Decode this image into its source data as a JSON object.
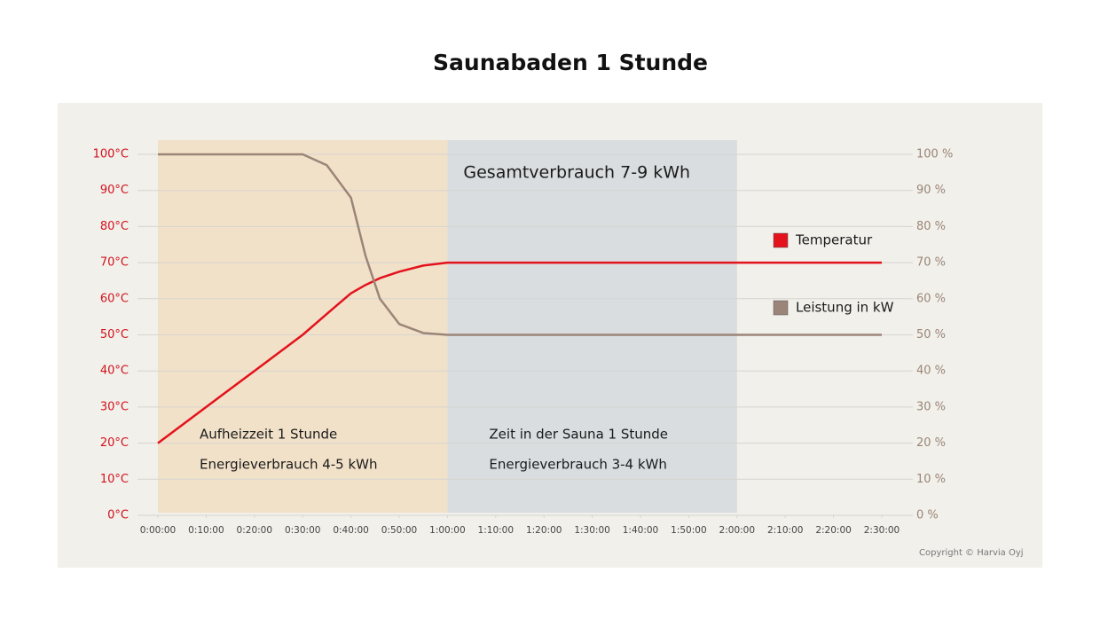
{
  "chart_data": {
    "type": "line",
    "title": "Saunabaden 1 Stunde",
    "x": [
      0,
      10,
      20,
      30,
      35,
      40,
      43,
      46,
      50,
      55,
      60,
      150
    ],
    "xlim": [
      0,
      150
    ],
    "xticks": [
      {
        "value": 0,
        "label": "0:00:00"
      },
      {
        "value": 10,
        "label": "0:10:00"
      },
      {
        "value": 20,
        "label": "0:20:00"
      },
      {
        "value": 30,
        "label": "0:30:00"
      },
      {
        "value": 40,
        "label": "0:40:00"
      },
      {
        "value": 50,
        "label": "0:50:00"
      },
      {
        "value": 60,
        "label": "1:00:00"
      },
      {
        "value": 70,
        "label": "1:10:00"
      },
      {
        "value": 80,
        "label": "1:20:00"
      },
      {
        "value": 90,
        "label": "1:30:00"
      },
      {
        "value": 100,
        "label": "1:40:00"
      },
      {
        "value": 110,
        "label": "1:50:00"
      },
      {
        "value": 120,
        "label": "2:00:00"
      },
      {
        "value": 130,
        "label": "2:10:00"
      },
      {
        "value": 140,
        "label": "2:20:00"
      },
      {
        "value": 150,
        "label": "2:30:00"
      }
    ],
    "ylim": [
      0,
      100
    ],
    "yticks": [
      {
        "value": 0,
        "label": "0°C"
      },
      {
        "value": 10,
        "label": "10°C"
      },
      {
        "value": 20,
        "label": "20°C"
      },
      {
        "value": 30,
        "label": "30°C"
      },
      {
        "value": 40,
        "label": "40°C"
      },
      {
        "value": 50,
        "label": "50°C"
      },
      {
        "value": 60,
        "label": "60°C"
      },
      {
        "value": 70,
        "label": "70°C"
      },
      {
        "value": 80,
        "label": "80°C"
      },
      {
        "value": 90,
        "label": "90°C"
      },
      {
        "value": 100,
        "label": "100°C"
      }
    ],
    "y2lim": [
      0,
      100
    ],
    "y2ticks": [
      {
        "value": 0,
        "label": "0 %"
      },
      {
        "value": 10,
        "label": "10 %"
      },
      {
        "value": 20,
        "label": "20 %"
      },
      {
        "value": 30,
        "label": "30 %"
      },
      {
        "value": 40,
        "label": "40 %"
      },
      {
        "value": 50,
        "label": "50 %"
      },
      {
        "value": 60,
        "label": "60 %"
      },
      {
        "value": 70,
        "label": "70 %"
      },
      {
        "value": 80,
        "label": "80 %"
      },
      {
        "value": 90,
        "label": "90 %"
      },
      {
        "value": 100,
        "label": "100 %"
      }
    ],
    "grid": true,
    "legend": "right",
    "series": [
      {
        "name": "Temperatur",
        "color": "#e3121c",
        "values": [
          20,
          30,
          40,
          50,
          55.8,
          61.5,
          63.8,
          65.7,
          67.5,
          69.2,
          70,
          70
        ]
      },
      {
        "name": "Leistung in kW",
        "color": "#9b8578",
        "axis": "y2",
        "values": [
          100,
          100,
          100,
          100,
          97,
          88,
          72,
          60,
          53,
          50.5,
          50,
          50
        ]
      }
    ],
    "regions": [
      {
        "x": [
          0,
          60
        ],
        "color": "#f2e1c9",
        "labels": [
          "Aufheizzeit 1 Stunde",
          "Energieverbrauch 4-5 kWh"
        ]
      },
      {
        "x": [
          60,
          120
        ],
        "color": "#d9dde0",
        "labels": [
          "Zeit in der Sauna 1 Stunde",
          "Energieverbrauch 3-4 kWh"
        ]
      }
    ],
    "annotation": "Gesamtverbrauch 7-9 kWh",
    "copyright": "Copyright © Harvia Oyj"
  }
}
